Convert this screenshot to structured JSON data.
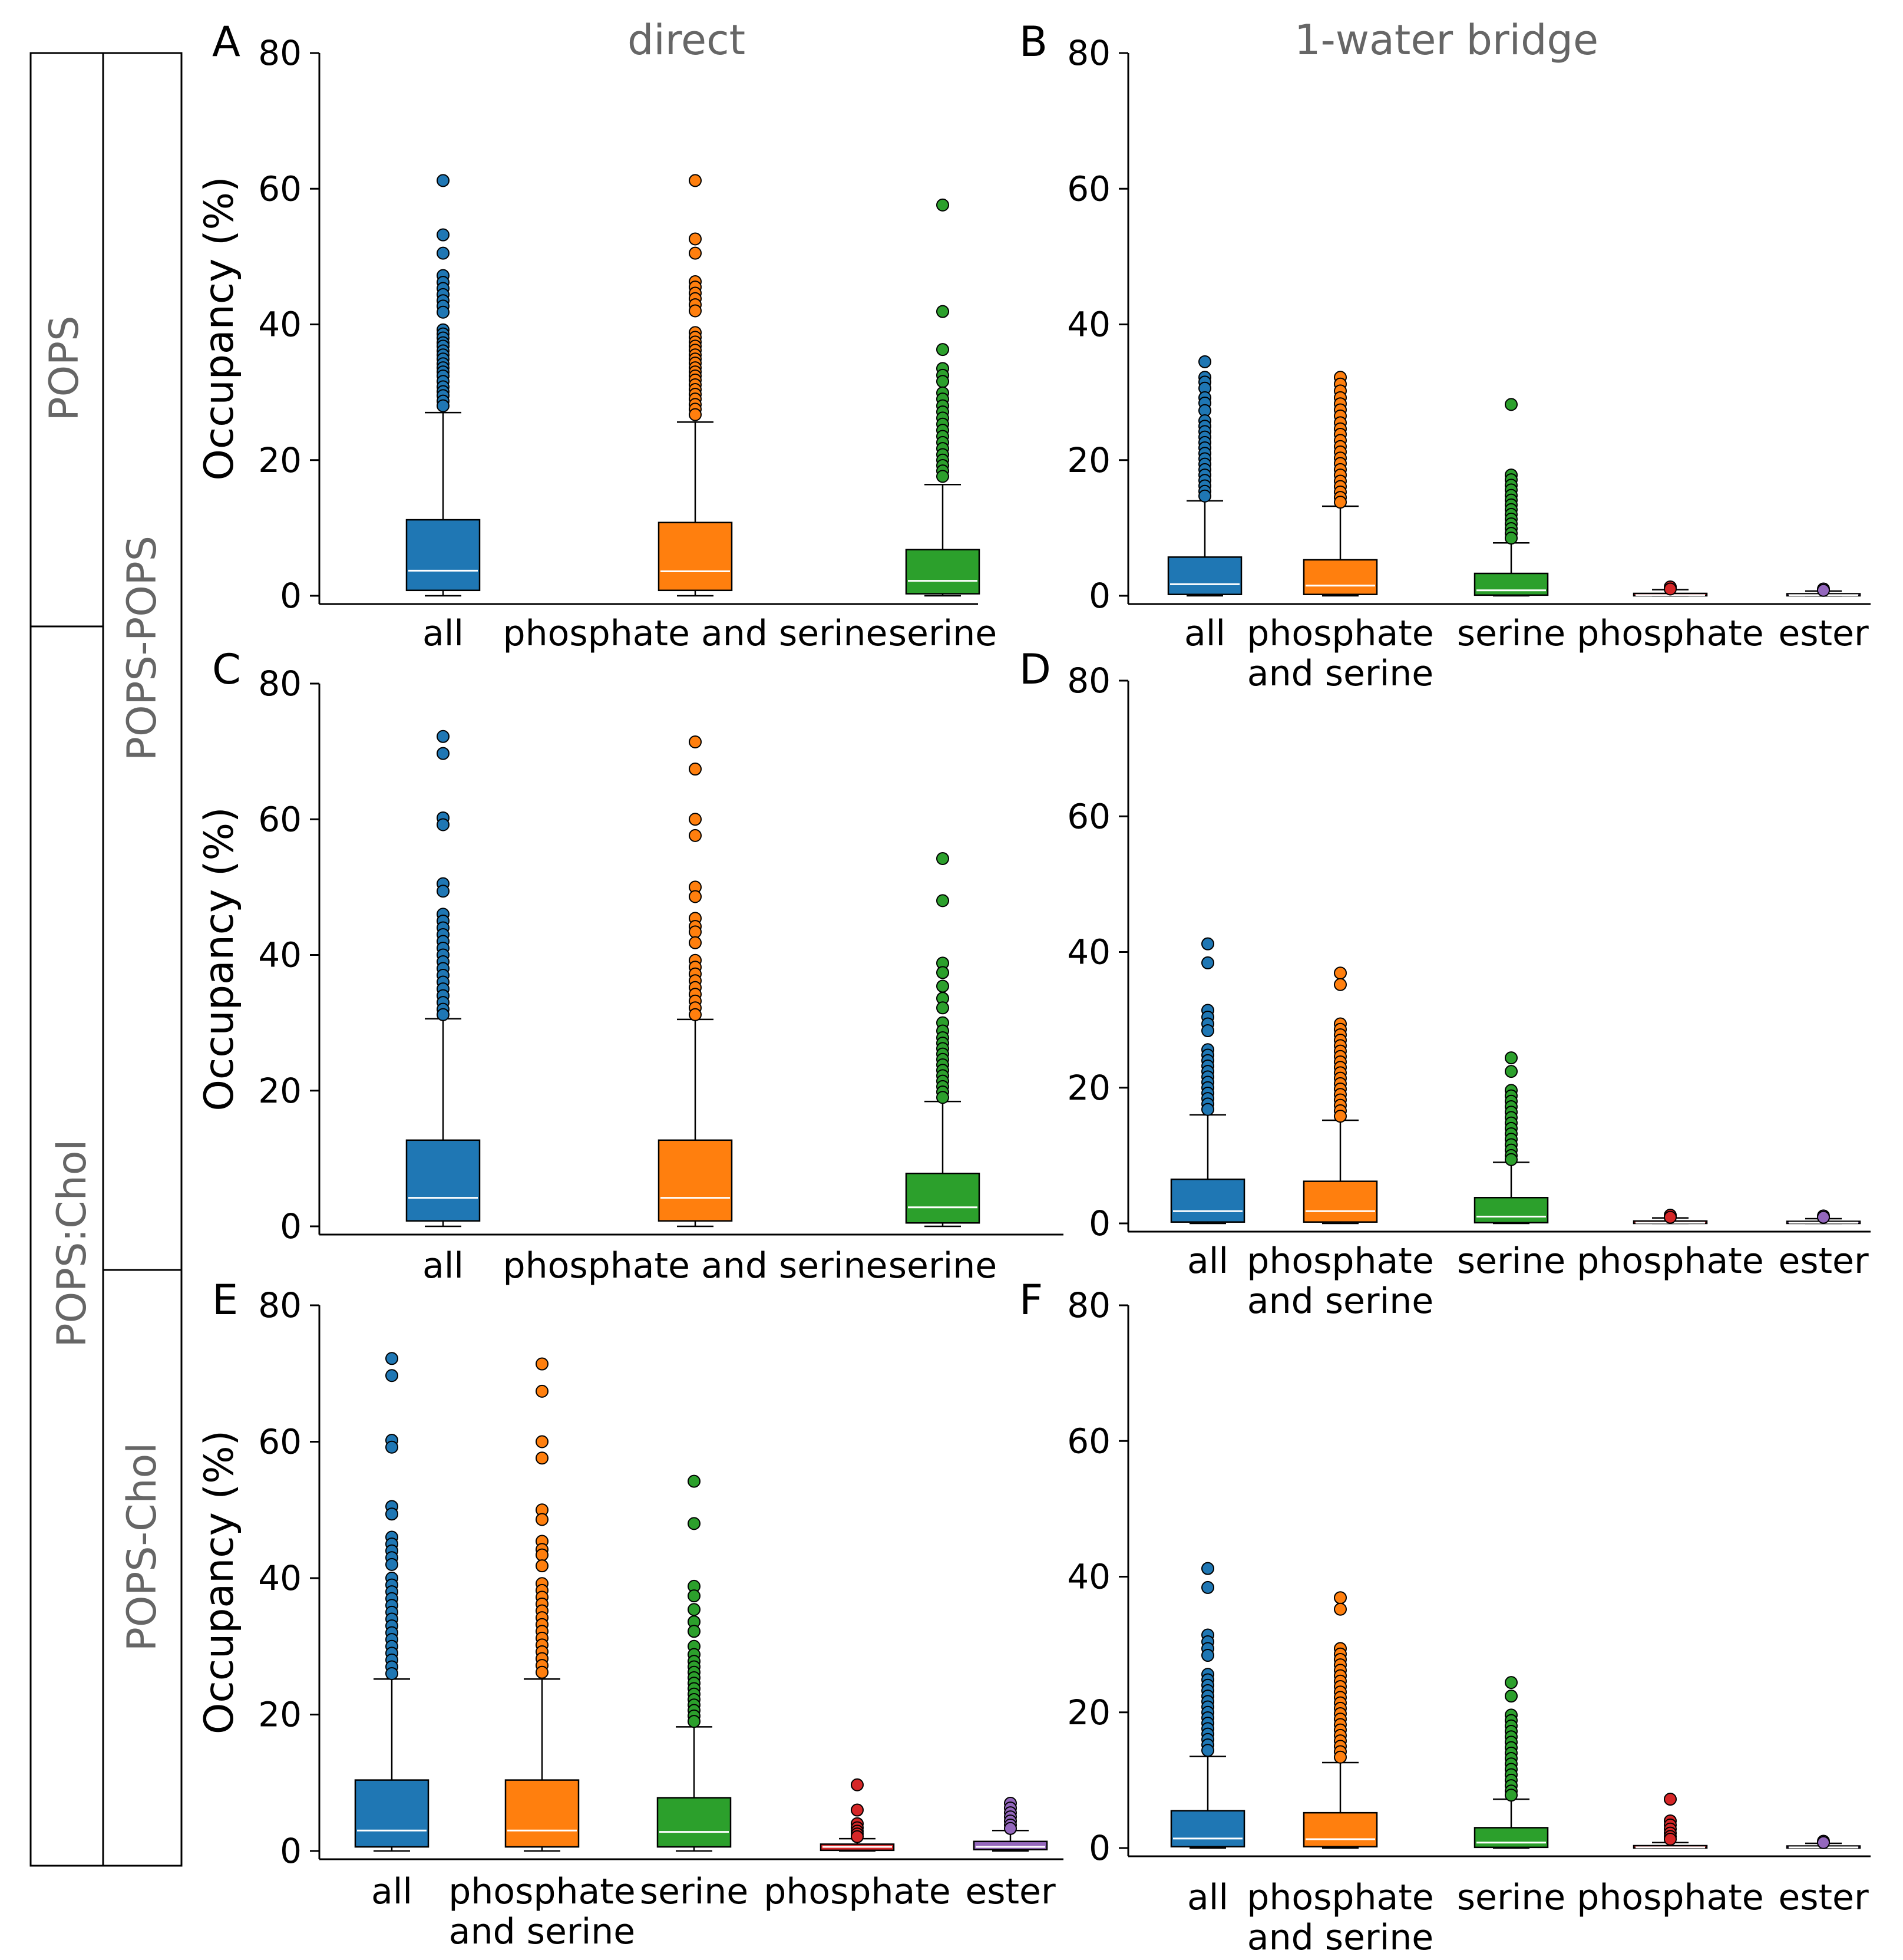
{
  "figure": {
    "column_titles": [
      "direct",
      "1-water bridge"
    ],
    "side_labels": {
      "system_1": "POPS",
      "system_2": "POPS:Chol",
      "pair_1": "POPS-POPS",
      "pair_2": "POPS-Chol"
    },
    "colors": {
      "all": "#1f77b4",
      "phosphate_and_serine": "#ff7f0e",
      "serine": "#2ca02c",
      "phosphate": "#d62728",
      "ester": "#9467bd"
    }
  },
  "chart_data": [
    {
      "panel": "A",
      "type": "box",
      "column_title": "direct",
      "ylabel": "Occupancy (%)",
      "ylim": [
        0,
        80
      ],
      "yticks": [
        "0",
        "20",
        "40",
        "60",
        "80"
      ],
      "grid": false,
      "categories": [
        "all",
        "phosphate and serine",
        "serine"
      ],
      "boxes": [
        {
          "name": "all",
          "color": "#1f77b4",
          "q1": 0.8,
          "median": 3.7,
          "q3": 11.2,
          "whisker_low": 0,
          "whisker_high": 27.0,
          "outliers": [
            61.2,
            53.2,
            50.5,
            47.2,
            46.2,
            45.3,
            44.4,
            43.5,
            42.7,
            41.8,
            39.2,
            38.6,
            38.0,
            37.3,
            36.8,
            36.1,
            35.5,
            34.9,
            34.2,
            33.6,
            33.0,
            32.4,
            31.6,
            30.8,
            30.1,
            29.5,
            28.7,
            28.0
          ]
        },
        {
          "name": "phosphate and serine",
          "color": "#ff7f0e",
          "q1": 0.8,
          "median": 3.6,
          "q3": 10.8,
          "whisker_low": 0,
          "whisker_high": 25.6,
          "outliers": [
            61.2,
            52.6,
            50.5,
            46.3,
            45.5,
            44.6,
            43.8,
            42.9,
            42.0,
            38.8,
            38.1,
            37.4,
            36.8,
            36.2,
            35.5,
            34.9,
            34.3,
            33.6,
            33.0,
            32.4,
            31.8,
            31.1,
            30.4,
            29.7,
            29.0,
            28.2,
            27.5,
            26.7
          ]
        },
        {
          "name": "serine",
          "color": "#2ca02c",
          "q1": 0.3,
          "median": 2.2,
          "q3": 6.8,
          "whisker_low": 0,
          "whisker_high": 16.4,
          "outliers": [
            57.6,
            41.9,
            36.3,
            33.5,
            32.5,
            31.6,
            29.9,
            29.0,
            28.0,
            27.1,
            26.2,
            25.3,
            24.4,
            23.5,
            22.6,
            21.7,
            20.8,
            20.0,
            19.2,
            18.4,
            17.6
          ]
        }
      ]
    },
    {
      "panel": "B",
      "type": "box",
      "column_title": "1-water bridge",
      "ylabel": "",
      "ylim": [
        0,
        80
      ],
      "yticks": [
        "0",
        "20",
        "40",
        "60",
        "80"
      ],
      "grid": false,
      "categories": [
        "all",
        "phosphate\nand serine",
        "serine",
        "phosphate",
        "ester"
      ],
      "boxes": [
        {
          "name": "all",
          "color": "#1f77b4",
          "q1": 0.2,
          "median": 1.7,
          "q3": 5.7,
          "whisker_low": 0,
          "whisker_high": 14.0,
          "outliers": [
            34.5,
            32.2,
            31.5,
            30.6,
            29.2,
            28.4,
            27.3,
            25.8,
            25.0,
            24.2,
            23.4,
            22.6,
            21.8,
            21.0,
            20.2,
            19.4,
            18.6,
            17.8,
            17.0,
            16.2,
            15.4,
            14.7
          ]
        },
        {
          "name": "phosphate and serine",
          "color": "#ff7f0e",
          "q1": 0.2,
          "median": 1.5,
          "q3": 5.3,
          "whisker_low": 0,
          "whisker_high": 13.2,
          "outliers": [
            32.2,
            31.2,
            30.2,
            29.2,
            28.3,
            27.4,
            26.5,
            25.5,
            24.6,
            23.8,
            22.9,
            22.0,
            21.2,
            20.3,
            19.5,
            18.6,
            17.8,
            16.9,
            16.1,
            15.3,
            14.5,
            13.8
          ]
        },
        {
          "name": "serine",
          "color": "#2ca02c",
          "q1": 0.1,
          "median": 0.8,
          "q3": 3.3,
          "whisker_low": 0,
          "whisker_high": 7.8,
          "outliers": [
            28.2,
            17.8,
            17.1,
            16.3,
            15.6,
            14.8,
            14.1,
            13.4,
            12.7,
            12.0,
            11.3,
            10.6,
            9.9,
            9.2,
            8.5
          ]
        },
        {
          "name": "phosphate",
          "color": "#d62728",
          "q1": 0.0,
          "median": 0.1,
          "q3": 0.35,
          "whisker_low": 0,
          "whisker_high": 0.9,
          "outliers": [
            1.3,
            1.0
          ]
        },
        {
          "name": "ester",
          "color": "#9467bd",
          "q1": 0.0,
          "median": 0.1,
          "q3": 0.3,
          "whisker_low": 0,
          "whisker_high": 0.7,
          "outliers": [
            1.0,
            0.8
          ]
        }
      ]
    },
    {
      "panel": "C",
      "type": "box",
      "column_title": "",
      "ylabel": "Occupancy (%)",
      "ylim": [
        0,
        80
      ],
      "yticks": [
        "0",
        "20",
        "40",
        "60",
        "80"
      ],
      "grid": false,
      "categories": [
        "all",
        "phosphate and serine",
        "serine"
      ],
      "boxes": [
        {
          "name": "all",
          "color": "#1f77b4",
          "q1": 0.8,
          "median": 4.2,
          "q3": 12.7,
          "whisker_low": 0,
          "whisker_high": 30.6,
          "outliers": [
            72.2,
            69.7,
            60.2,
            59.2,
            50.5,
            49.4,
            46.0,
            45.0,
            44.0,
            43.0,
            42.0,
            41.0,
            40.0,
            39.0,
            38.0,
            37.0,
            36.0,
            35.0,
            34.0,
            33.0,
            32.0,
            31.2
          ]
        },
        {
          "name": "phosphate and serine",
          "color": "#ff7f0e",
          "q1": 0.8,
          "median": 4.2,
          "q3": 12.7,
          "whisker_low": 0,
          "whisker_high": 30.5,
          "outliers": [
            71.4,
            67.4,
            60.0,
            57.6,
            50.0,
            48.6,
            45.4,
            44.2,
            43.4,
            41.8,
            39.2,
            38.2,
            37.2,
            36.2,
            35.2,
            34.2,
            33.2,
            32.2,
            31.2
          ]
        },
        {
          "name": "serine",
          "color": "#2ca02c",
          "q1": 0.5,
          "median": 2.8,
          "q3": 7.8,
          "whisker_low": 0,
          "whisker_high": 18.4,
          "outliers": [
            54.2,
            48.0,
            38.8,
            37.4,
            35.4,
            33.6,
            32.2,
            30.0,
            28.8,
            27.8,
            27.0,
            26.2,
            25.4,
            24.6,
            23.8,
            23.0,
            22.2,
            21.4,
            20.6,
            19.8,
            19.0
          ]
        }
      ]
    },
    {
      "panel": "D",
      "type": "box",
      "column_title": "",
      "ylabel": "",
      "ylim": [
        0,
        80
      ],
      "yticks": [
        "0",
        "20",
        "40",
        "60",
        "80"
      ],
      "grid": false,
      "categories": [
        "all",
        "phosphate\nand serine",
        "serine",
        "phosphate",
        "ester"
      ],
      "boxes": [
        {
          "name": "all",
          "color": "#1f77b4",
          "q1": 0.2,
          "median": 1.8,
          "q3": 6.5,
          "whisker_low": 0,
          "whisker_high": 16.0,
          "outliers": [
            41.2,
            38.4,
            31.4,
            30.4,
            29.4,
            28.4,
            25.6,
            24.8,
            24.0,
            23.2,
            22.4,
            21.6,
            20.8,
            20.0,
            19.2,
            18.4,
            17.6,
            16.8
          ]
        },
        {
          "name": "phosphate and serine",
          "color": "#ff7f0e",
          "q1": 0.2,
          "median": 1.8,
          "q3": 6.2,
          "whisker_low": 0,
          "whisker_high": 15.2,
          "outliers": [
            36.9,
            35.2,
            29.4,
            28.6,
            27.8,
            27.0,
            26.2,
            25.4,
            24.6,
            23.8,
            23.0,
            22.2,
            21.4,
            20.6,
            19.8,
            19.0,
            18.2,
            17.4,
            16.6,
            15.8
          ]
        },
        {
          "name": "serine",
          "color": "#2ca02c",
          "q1": 0.1,
          "median": 1.0,
          "q3": 3.8,
          "whisker_low": 0,
          "whisker_high": 9.0,
          "outliers": [
            24.4,
            22.4,
            19.6,
            18.8,
            18.0,
            17.2,
            16.4,
            15.6,
            14.8,
            14.0,
            13.2,
            12.4,
            11.6,
            10.8,
            10.0,
            9.4
          ]
        },
        {
          "name": "phosphate",
          "color": "#d62728",
          "q1": 0.0,
          "median": 0.1,
          "q3": 0.35,
          "whisker_low": 0,
          "whisker_high": 0.8,
          "outliers": [
            1.2,
            0.9
          ]
        },
        {
          "name": "ester",
          "color": "#9467bd",
          "q1": 0.0,
          "median": 0.1,
          "q3": 0.3,
          "whisker_low": 0,
          "whisker_high": 0.7,
          "outliers": [
            1.1,
            0.9
          ]
        }
      ]
    },
    {
      "panel": "E",
      "type": "box",
      "column_title": "",
      "ylabel": "Occupancy (%)",
      "ylim": [
        0,
        80
      ],
      "yticks": [
        "0",
        "20",
        "40",
        "60",
        "80"
      ],
      "grid": false,
      "categories": [
        "all",
        "phosphate\nand serine",
        "serine",
        "phosphate",
        "ester"
      ],
      "boxes": [
        {
          "name": "all",
          "color": "#1f77b4",
          "q1": 0.6,
          "median": 3.0,
          "q3": 10.4,
          "whisker_low": 0,
          "whisker_high": 25.2,
          "outliers": [
            72.2,
            69.7,
            60.2,
            59.2,
            50.5,
            49.4,
            46.0,
            45.0,
            44.0,
            43.0,
            42.0,
            40.0,
            39.0,
            38.0,
            37.0,
            36.0,
            35.0,
            34.0,
            33.0,
            32.0,
            31.0,
            30.0,
            29.0,
            28.0,
            27.0,
            26.0
          ]
        },
        {
          "name": "phosphate and serine",
          "color": "#ff7f0e",
          "q1": 0.6,
          "median": 3.0,
          "q3": 10.4,
          "whisker_low": 0,
          "whisker_high": 25.2,
          "outliers": [
            71.4,
            67.4,
            60.0,
            57.6,
            50.0,
            48.6,
            45.4,
            44.2,
            43.4,
            41.8,
            39.2,
            38.2,
            37.2,
            36.2,
            35.2,
            34.2,
            33.2,
            32.2,
            31.2,
            30.2,
            29.2,
            28.2,
            27.2,
            26.2
          ]
        },
        {
          "name": "serine",
          "color": "#2ca02c",
          "q1": 0.6,
          "median": 2.8,
          "q3": 7.8,
          "whisker_low": 0,
          "whisker_high": 18.2,
          "outliers": [
            54.2,
            48.0,
            38.8,
            37.4,
            35.4,
            33.6,
            32.2,
            30.0,
            28.8,
            27.8,
            27.0,
            26.2,
            25.4,
            24.6,
            23.8,
            23.0,
            22.2,
            21.4,
            20.6,
            19.8,
            19.0
          ]
        },
        {
          "name": "phosphate",
          "color": "#d62728",
          "q1": 0.1,
          "median": 0.6,
          "q3": 1.0,
          "whisker_low": 0,
          "whisker_high": 1.8,
          "outliers": [
            9.7,
            6.0,
            4.0,
            3.4,
            2.9,
            2.5,
            2.1
          ]
        },
        {
          "name": "ester",
          "color": "#9467bd",
          "q1": 0.2,
          "median": 0.6,
          "q3": 1.4,
          "whisker_low": 0,
          "whisker_high": 3.0,
          "outliers": [
            7.0,
            6.3,
            5.6,
            5.0,
            4.4,
            3.8,
            3.3
          ]
        }
      ]
    },
    {
      "panel": "F",
      "type": "box",
      "column_title": "",
      "ylabel": "",
      "ylim": [
        0,
        80
      ],
      "yticks": [
        "0",
        "20",
        "40",
        "60",
        "80"
      ],
      "grid": false,
      "categories": [
        "all",
        "phosphate\nand serine",
        "serine",
        "phosphate",
        "ester"
      ],
      "boxes": [
        {
          "name": "all",
          "color": "#1f77b4",
          "q1": 0.2,
          "median": 1.4,
          "q3": 5.5,
          "whisker_low": 0,
          "whisker_high": 13.5,
          "outliers": [
            41.2,
            38.4,
            31.4,
            30.4,
            29.4,
            28.4,
            25.6,
            24.8,
            24.0,
            23.2,
            22.4,
            21.6,
            20.8,
            20.0,
            19.2,
            18.4,
            17.6,
            16.8,
            16.0,
            15.2,
            14.4
          ]
        },
        {
          "name": "phosphate and serine",
          "color": "#ff7f0e",
          "q1": 0.2,
          "median": 1.3,
          "q3": 5.2,
          "whisker_low": 0,
          "whisker_high": 12.6,
          "outliers": [
            36.9,
            35.2,
            29.4,
            28.6,
            27.8,
            27.0,
            26.2,
            25.4,
            24.6,
            23.8,
            23.0,
            22.2,
            21.4,
            20.6,
            19.8,
            19.0,
            18.2,
            17.4,
            16.6,
            15.8,
            15.0,
            14.2,
            13.4
          ]
        },
        {
          "name": "serine",
          "color": "#2ca02c",
          "q1": 0.1,
          "median": 0.8,
          "q3": 3.0,
          "whisker_low": 0,
          "whisker_high": 7.2,
          "outliers": [
            24.4,
            22.4,
            19.6,
            18.8,
            18.0,
            17.2,
            16.4,
            15.6,
            14.8,
            14.0,
            13.2,
            12.4,
            11.6,
            10.8,
            10.0,
            9.2,
            8.4,
            7.8
          ]
        },
        {
          "name": "phosphate",
          "color": "#d62728",
          "q1": 0.0,
          "median": 0.1,
          "q3": 0.35,
          "whisker_low": 0,
          "whisker_high": 0.8,
          "outliers": [
            7.2,
            4.0,
            3.4,
            2.8,
            2.2,
            1.7,
            1.3
          ]
        },
        {
          "name": "ester",
          "color": "#9467bd",
          "q1": 0.0,
          "median": 0.1,
          "q3": 0.3,
          "whisker_low": 0,
          "whisker_high": 0.7,
          "outliers": [
            1.0,
            0.8
          ]
        }
      ]
    }
  ]
}
